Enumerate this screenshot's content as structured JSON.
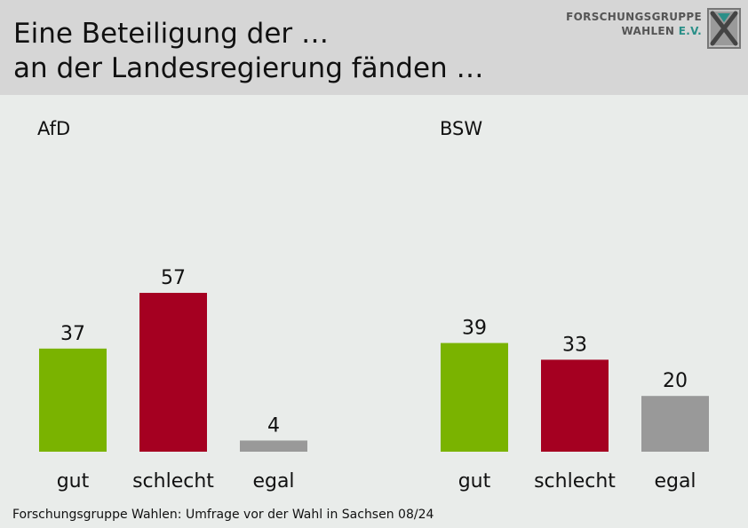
{
  "header": {
    "title_line1": "Eine Beteiligung der …",
    "title_line2": "an der Landesregierung fänden …"
  },
  "logo": {
    "line1": "FORSCHUNGSGRUPPE",
    "line2": "WAHLEN",
    "line2_suffix": "E.V.",
    "icon": "x-box-logo"
  },
  "footer": {
    "source": "Forschungsgruppe Wahlen: Umfrage vor der Wahl in Sachsen 08/24"
  },
  "colors": {
    "gut": "#7ab300",
    "schlecht": "#a50021",
    "egal": "#999999",
    "header_bg": "#d6d6d6",
    "chart_bg": "#e9ecea"
  },
  "chart_data": [
    {
      "type": "bar",
      "title": "AfD",
      "categories": [
        "gut",
        "schlecht",
        "egal"
      ],
      "values": [
        37,
        57,
        4
      ],
      "bar_colors": [
        "#7ab300",
        "#a50021",
        "#999999"
      ],
      "ylim": [
        0,
        100
      ]
    },
    {
      "type": "bar",
      "title": "BSW",
      "categories": [
        "gut",
        "schlecht",
        "egal"
      ],
      "values": [
        39,
        33,
        20
      ],
      "bar_colors": [
        "#7ab300",
        "#a50021",
        "#999999"
      ],
      "ylim": [
        0,
        100
      ]
    }
  ]
}
